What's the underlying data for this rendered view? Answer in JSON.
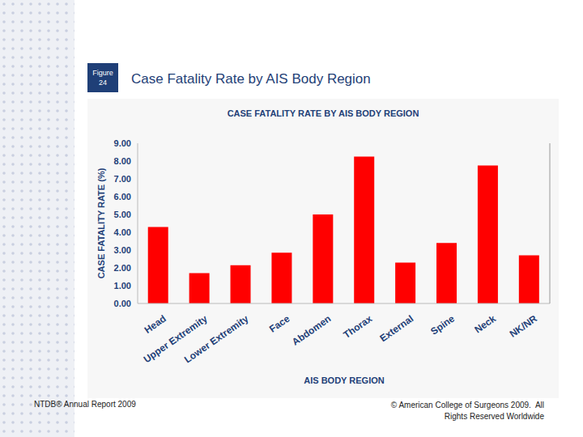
{
  "slide": {
    "figure_label": "Figure 24",
    "title": "Case Fatality Rate by AIS Body Region",
    "footer_left": "NTDB® Annual Report 2009",
    "footer_right": [
      "© American College of Surgeons 2009.  All",
      "Rights Reserved Worldwide"
    ]
  },
  "chart_data": {
    "type": "bar",
    "title": "CASE FATALITY RATE BY AIS BODY REGION",
    "x_label": "AIS BODY REGION",
    "y_label": "CASE FATALITY RATE (%)",
    "categories": [
      "Head",
      "Upper Extremity",
      "Lower Extremity",
      "Face",
      "Abdomen",
      "Thorax",
      "External",
      "Spine",
      "Neck",
      "NK/NR"
    ],
    "values": [
      4.3,
      1.7,
      2.15,
      2.85,
      5.0,
      8.25,
      2.3,
      3.4,
      7.75,
      2.7
    ],
    "color": "#ff0000",
    "ylim": [
      0,
      9
    ],
    "yticks": [
      {
        "value": 0,
        "label": "0.00"
      },
      {
        "value": 1,
        "label": "1.00"
      },
      {
        "value": 2,
        "label": "2.00"
      },
      {
        "value": 3,
        "label": "3.00"
      },
      {
        "value": 4,
        "label": "4.00"
      },
      {
        "value": 5,
        "label": "5.00"
      },
      {
        "value": 6,
        "label": "6.00"
      },
      {
        "value": 7,
        "label": "7.00"
      },
      {
        "value": 8,
        "label": "8.00"
      },
      {
        "value": 9,
        "label": "9.00"
      }
    ],
    "grid": false
  }
}
